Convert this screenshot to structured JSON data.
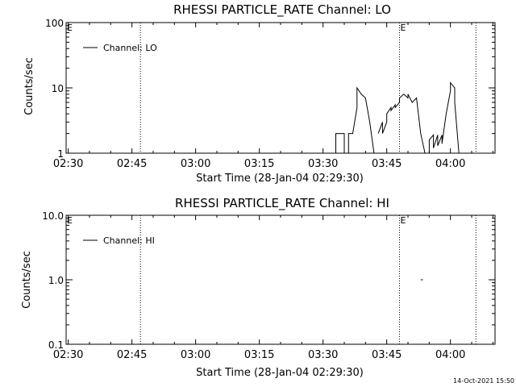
{
  "chart_data": [
    {
      "type": "line",
      "title": "RHESSI PARTICLE_RATE Channel: LO",
      "xlabel": "Start Time (28-Jan-04 02:29:30)",
      "ylabel": "Counts/sec",
      "y_scale": "log",
      "ylim": [
        1,
        100
      ],
      "xlim": [
        "02:29:30",
        "04:10:30"
      ],
      "x_ticks": [
        "02:30",
        "02:45",
        "03:00",
        "03:15",
        "03:30",
        "03:45",
        "04:00"
      ],
      "y_ticks": [
        "1",
        "10",
        "100"
      ],
      "legend": {
        "label": "Channel: LO",
        "placement": "top-left"
      },
      "marker_label": "E",
      "vertical_lines": [
        "02:47",
        "03:48",
        "04:06"
      ],
      "series": [
        {
          "name": "Channel: LO",
          "segments": [
            [
              [
                "03:33",
                1
              ],
              [
                "03:33",
                2
              ],
              [
                "03:35",
                2
              ],
              [
                "03:35",
                1
              ],
              [
                "03:36",
                1
              ],
              [
                "03:36",
                2
              ],
              [
                "03:37",
                2
              ],
              [
                "03:38",
                5
              ],
              [
                "03:38",
                10
              ],
              [
                "03:39",
                8
              ],
              [
                "03:40",
                7
              ],
              [
                "03:41",
                3
              ],
              [
                "03:42",
                1
              ]
            ],
            [
              [
                "03:43",
                2
              ],
              [
                "03:44",
                3
              ],
              [
                "03:44",
                2
              ],
              [
                "03:45",
                3
              ],
              [
                "03:45",
                4
              ],
              [
                "03:46",
                5
              ],
              [
                "03:46",
                4.5
              ],
              [
                "03:47",
                5.5
              ],
              [
                "03:47",
                5
              ],
              [
                "03:48",
                6
              ],
              [
                "03:48",
                7
              ],
              [
                "03:49",
                8
              ],
              [
                "03:50",
                7
              ],
              [
                "03:50",
                8
              ],
              [
                "03:51",
                6
              ],
              [
                "03:52",
                7
              ],
              [
                "03:53",
                2
              ],
              [
                "03:54",
                1
              ]
            ],
            [
              [
                "03:55",
                1
              ],
              [
                "03:55",
                1.6
              ],
              [
                "03:56",
                1.9
              ],
              [
                "03:56",
                1.2
              ],
              [
                "03:57",
                1.9
              ],
              [
                "03:57",
                1.3
              ],
              [
                "03:58",
                1.9
              ],
              [
                "03:58",
                1.4
              ],
              [
                "03:59",
                4
              ],
              [
                "04:00",
                9
              ],
              [
                "04:00",
                12
              ],
              [
                "04:01",
                10
              ],
              [
                "04:01",
                6
              ],
              [
                "04:02",
                1
              ]
            ]
          ]
        }
      ]
    },
    {
      "type": "line",
      "title": "RHESSI PARTICLE_RATE Channel: HI",
      "xlabel": "Start Time (28-Jan-04 02:29:30)",
      "ylabel": "Counts/sec",
      "y_scale": "log",
      "ylim": [
        0.1,
        10
      ],
      "xlim": [
        "02:29:30",
        "04:10:30"
      ],
      "x_ticks": [
        "02:30",
        "02:45",
        "03:00",
        "03:15",
        "03:30",
        "03:45",
        "04:00"
      ],
      "y_ticks": [
        "0.1",
        "1.0",
        "10.0"
      ],
      "legend": {
        "label": "Channel: HI",
        "placement": "top-left"
      },
      "marker_label": "E",
      "vertical_lines": [
        "02:47",
        "03:48",
        "04:06"
      ],
      "series": [
        {
          "name": "Channel: HI",
          "segments": [
            [
              [
                "03:53",
                1
              ],
              [
                "03:53.5",
                1
              ]
            ]
          ]
        }
      ]
    }
  ],
  "footer": {
    "timestamp": "14-Oct-2021 15:50"
  }
}
